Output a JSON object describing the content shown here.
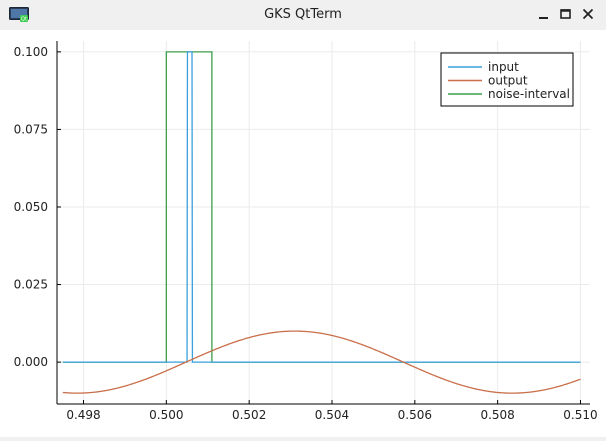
{
  "window": {
    "title": "GKS QtTerm",
    "app_icon": "qt-terminal-icon",
    "buttons": {
      "minimize": "minimize-icon",
      "maximize": "maximize-icon",
      "close": "close-icon"
    }
  },
  "chart_data": {
    "type": "line",
    "title": "",
    "xlabel": "",
    "ylabel": "",
    "xlim": [
      0.49736,
      0.51023
    ],
    "ylim": [
      -0.0135,
      0.1035
    ],
    "x_ticks": [
      0.498,
      0.5,
      0.502,
      0.504,
      0.506,
      0.508,
      0.51
    ],
    "x_tick_labels": [
      "0.498",
      "0.500",
      "0.502",
      "0.504",
      "0.506",
      "0.508",
      "0.510"
    ],
    "y_ticks": [
      0,
      0.025,
      0.05,
      0.075,
      0.1
    ],
    "y_tick_labels": [
      "0.000",
      "0.025",
      "0.050",
      "0.075",
      "0.100"
    ],
    "grid": true,
    "legend_position": "top-right",
    "series": [
      {
        "name": "input",
        "color": "#3a9fdd",
        "x": [
          0.4975,
          0.5005,
          0.50051,
          0.50062,
          0.50063,
          0.5011,
          0.51
        ],
        "y": [
          0,
          0,
          0.1,
          0.1,
          0,
          0,
          0
        ]
      },
      {
        "name": "output",
        "color": "#c96f4a",
        "sine": {
          "amplitude": 0.01,
          "period": 0.0105,
          "peak_x": 0.5031,
          "x_start": 0.4975,
          "x_end": 0.51
        }
      },
      {
        "name": "noise-interval",
        "color": "#3c9e4a",
        "x": [
          0.4975,
          0.5,
          0.5,
          0.5011,
          0.5011,
          0.51
        ],
        "y": [
          0,
          0,
          0.1,
          0.1,
          0,
          0
        ]
      }
    ]
  }
}
